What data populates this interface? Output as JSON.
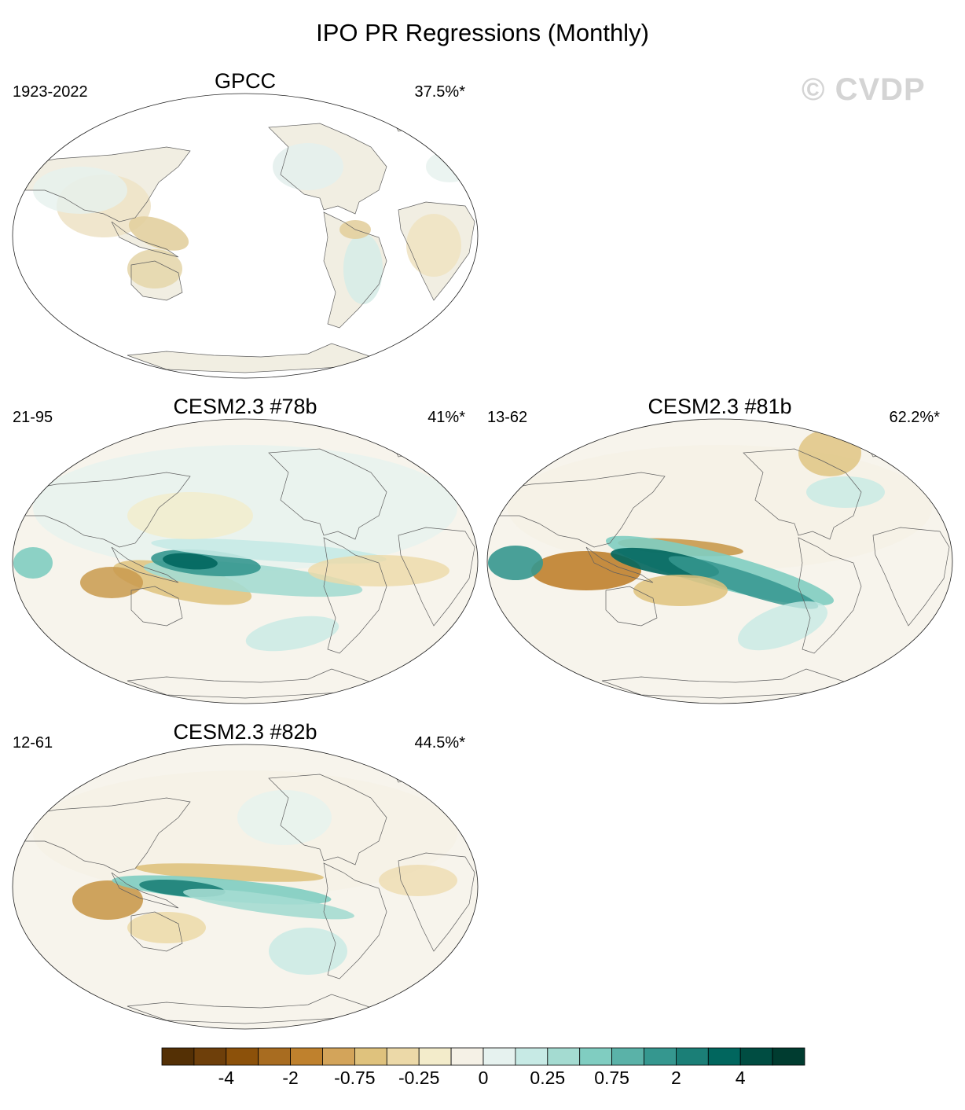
{
  "title": "IPO PR Regressions (Monthly)",
  "watermark": "© CVDP",
  "panels": [
    {
      "name": "GPCC",
      "years": "1923-2022",
      "pct": "37.5%*",
      "style": "obs"
    },
    {
      "name": "CESM2.3 #78b",
      "years": "21-95",
      "pct": "41%*",
      "style": "m78"
    },
    {
      "name": "CESM2.3 #81b",
      "years": "13-62",
      "pct": "62.2%*",
      "style": "m81"
    },
    {
      "name": "CESM2.3 #82b",
      "years": "12-61",
      "pct": "44.5%*",
      "style": "m82"
    }
  ],
  "colorbar": {
    "colors": [
      "#543005",
      "#6e3f0a",
      "#8c510a",
      "#a86c20",
      "#bf812d",
      "#d3a45a",
      "#dfc27d",
      "#ecd9a8",
      "#f3eccb",
      "#f5f1e6",
      "#e6f2ef",
      "#c7eae5",
      "#a4dbd1",
      "#80cdc1",
      "#5ab2a8",
      "#35978f",
      "#1b7f77",
      "#01665e",
      "#004d42",
      "#003c30"
    ],
    "labels": [
      {
        "text": "-4",
        "boundary": 2
      },
      {
        "text": "-2",
        "boundary": 4
      },
      {
        "text": "-0.75",
        "boundary": 6
      },
      {
        "text": "-0.25",
        "boundary": 8
      },
      {
        "text": "0",
        "boundary": 10
      },
      {
        "text": "0.25",
        "boundary": 12
      },
      {
        "text": "0.75",
        "boundary": 14
      },
      {
        "text": "2",
        "boundary": 16
      },
      {
        "text": "4",
        "boundary": 18
      }
    ]
  }
}
